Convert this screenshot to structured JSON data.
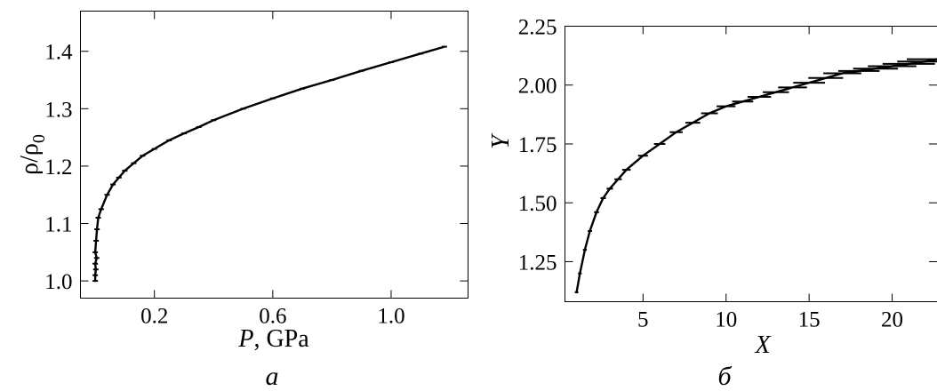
{
  "chart_data": [
    {
      "type": "line",
      "panel_label": "a",
      "xlabel_var": "P",
      "xlabel_unit": ", GPa",
      "ylabel_main": "ρ/ρ",
      "ylabel_sub": "0",
      "xlim": [
        -0.05,
        1.26
      ],
      "ylim": [
        0.97,
        1.47
      ],
      "xticks": [
        0.2,
        0.6,
        1.0
      ],
      "xtick_labels": [
        "0.2",
        "0.6",
        "1.0"
      ],
      "yticks": [
        1.0,
        1.1,
        1.2,
        1.3,
        1.4
      ],
      "ytick_labels": [
        "1.0",
        "1.1",
        "1.2",
        "1.3",
        "1.4"
      ],
      "grid": false,
      "series": [
        {
          "x": [
            0.0,
            0.0,
            0.002,
            0.0,
            0.005,
            0.0,
            0.003,
            0.006,
            0.01,
            0.02,
            0.04,
            0.06,
            0.08,
            0.1,
            0.13,
            0.16,
            0.2,
            0.25,
            0.3,
            0.35,
            0.4,
            0.5,
            0.6,
            0.7,
            0.8,
            0.9,
            1.0,
            1.1,
            1.18
          ],
          "y": [
            1.0,
            1.01,
            1.02,
            1.03,
            1.04,
            1.05,
            1.07,
            1.09,
            1.11,
            1.125,
            1.15,
            1.168,
            1.18,
            1.192,
            1.205,
            1.218,
            1.23,
            1.245,
            1.257,
            1.268,
            1.28,
            1.3,
            1.318,
            1.335,
            1.35,
            1.366,
            1.381,
            1.396,
            1.408
          ]
        }
      ]
    },
    {
      "type": "line",
      "panel_label": "б",
      "xlabel": "X",
      "ylabel": "Y",
      "xlim": [
        0.3,
        22.7
      ],
      "ylim": [
        1.08,
        2.25
      ],
      "xticks": [
        5,
        10,
        15,
        20
      ],
      "xtick_labels": [
        "5",
        "10",
        "15",
        "20"
      ],
      "yticks": [
        1.25,
        1.5,
        1.75,
        2.0,
        2.25
      ],
      "ytick_labels": [
        "1.25",
        "1.50",
        "1.75",
        "2.00",
        "2.25"
      ],
      "grid": false,
      "series": [
        {
          "x": [
            1.0,
            1.2,
            1.5,
            1.8,
            2.2,
            2.6,
            3.0,
            3.5,
            4.0,
            5.0,
            6.0,
            7.0,
            8.0,
            9.0,
            10.0,
            11.0,
            12.0,
            13.0,
            14.0,
            15.0,
            16.0,
            17.0,
            18.0,
            19.0,
            20.0,
            21.0,
            22.0,
            22.7
          ],
          "y": [
            1.12,
            1.2,
            1.3,
            1.38,
            1.46,
            1.52,
            1.56,
            1.6,
            1.64,
            1.7,
            1.75,
            1.8,
            1.84,
            1.88,
            1.91,
            1.93,
            1.95,
            1.97,
            1.99,
            2.01,
            2.03,
            2.05,
            2.06,
            2.07,
            2.08,
            2.09,
            2.1,
            2.11
          ]
        }
      ]
    }
  ]
}
